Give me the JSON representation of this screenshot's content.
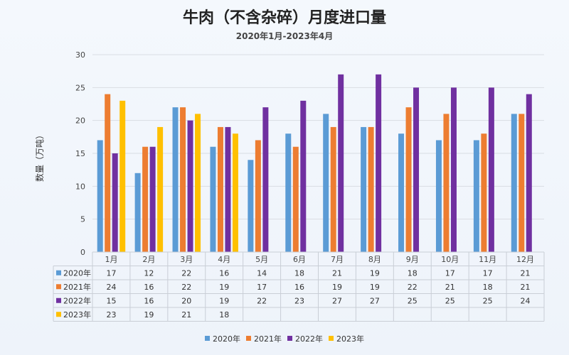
{
  "title": "牛肉（不含杂碎）月度进口量",
  "subtitle": "2020年1月-2023年4月",
  "chart_data": {
    "type": "bar",
    "title": "牛肉（不含杂碎）月度进口量",
    "subtitle": "2020年1月-2023年4月",
    "xlabel": "",
    "ylabel": "数量（万吨）",
    "ylim": [
      0,
      30
    ],
    "yticks": [
      0,
      5,
      10,
      15,
      20,
      25,
      30
    ],
    "grid": true,
    "legend_position": "bottom",
    "data_table": true,
    "categories": [
      "1月",
      "2月",
      "3月",
      "4月",
      "5月",
      "6月",
      "7月",
      "8月",
      "9月",
      "10月",
      "11月",
      "12月"
    ],
    "series": [
      {
        "name": "2020年",
        "color": "#5b9bd5",
        "values": [
          17,
          12,
          22,
          16,
          14,
          18,
          21,
          19,
          18,
          17,
          17,
          21
        ]
      },
      {
        "name": "2021年",
        "color": "#ed7d31",
        "values": [
          24,
          16,
          22,
          19,
          17,
          16,
          19,
          19,
          22,
          21,
          18,
          21
        ]
      },
      {
        "name": "2022年",
        "color": "#7030a0",
        "values": [
          15,
          16,
          20,
          19,
          22,
          23,
          27,
          27,
          25,
          25,
          25,
          24
        ]
      },
      {
        "name": "2023年",
        "color": "#ffc000",
        "values": [
          23,
          19,
          21,
          18,
          null,
          null,
          null,
          null,
          null,
          null,
          null,
          null
        ]
      }
    ]
  }
}
